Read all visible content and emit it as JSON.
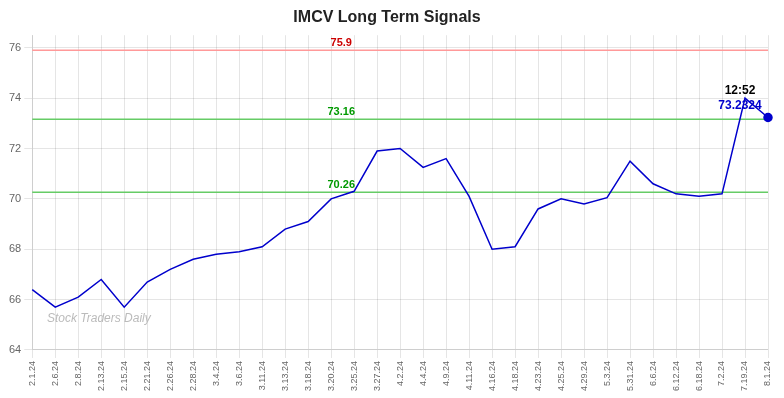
{
  "chart_data": {
    "type": "line",
    "title": "IMCV Long Term Signals",
    "categories": [
      "2.1.24",
      "2.6.24",
      "2.8.24",
      "2.13.24",
      "2.15.24",
      "2.21.24",
      "2.26.24",
      "2.28.24",
      "3.4.24",
      "3.6.24",
      "3.11.24",
      "3.13.24",
      "3.18.24",
      "3.20.24",
      "3.25.24",
      "3.27.24",
      "4.2.24",
      "4.4.24",
      "4.9.24",
      "4.11.24",
      "4.16.24",
      "4.18.24",
      "4.23.24",
      "4.25.24",
      "4.29.24",
      "5.3.24",
      "5.31.24",
      "6.6.24",
      "6.12.24",
      "6.18.24",
      "7.2.24",
      "7.19.24",
      "8.1.24"
    ],
    "values": [
      66.4,
      65.7,
      66.1,
      66.8,
      65.7,
      66.7,
      67.2,
      67.6,
      67.8,
      67.9,
      68.1,
      68.8,
      69.1,
      70.0,
      70.3,
      71.9,
      72.0,
      71.25,
      71.6,
      70.1,
      68.0,
      68.1,
      69.6,
      70.0,
      69.8,
      70.05,
      71.5,
      70.6,
      70.2,
      70.1,
      70.2,
      74.0,
      73.2324
    ],
    "color": "#0000cc",
    "ylim": [
      64,
      76.5
    ],
    "yticks": [
      64,
      66,
      68,
      70,
      72,
      74,
      76
    ],
    "grid": true,
    "hlines": [
      {
        "value": 75.9,
        "label": "75.9",
        "color": "#ff9999",
        "label_color": "#cc0000"
      },
      {
        "value": 73.16,
        "label": "73.16",
        "color": "#66cc66",
        "label_color": "#009900"
      },
      {
        "value": 70.26,
        "label": "70.26",
        "color": "#66cc66",
        "label_color": "#009900"
      }
    ],
    "point_note": {
      "category": "8.1.24",
      "value": 73.2324,
      "color": "#0000cc",
      "labels": [
        "12:52",
        "73.2324"
      ],
      "label_colors": [
        "#000000",
        "#0000cc"
      ]
    },
    "watermark": "Stock Traders Daily"
  }
}
